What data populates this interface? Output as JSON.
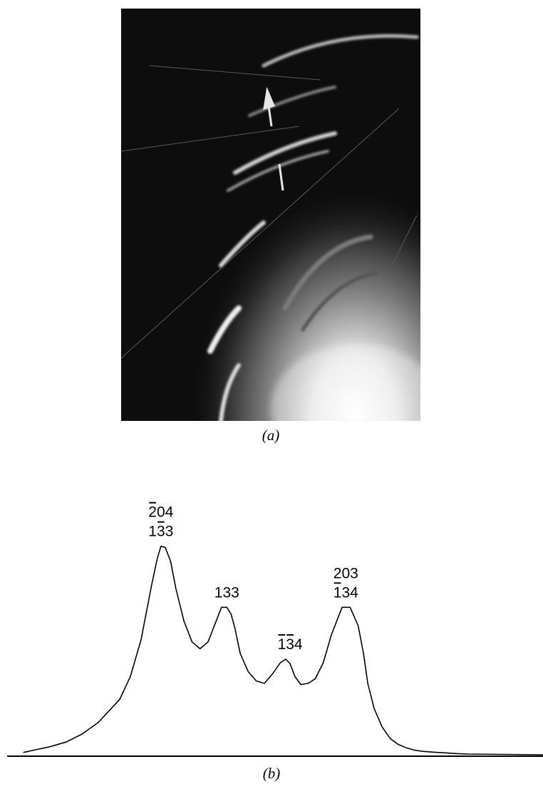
{
  "figure": {
    "panel_a": {
      "caption": "(a)"
    },
    "panel_b": {
      "caption": "(b)"
    }
  },
  "chart_data": {
    "type": "line",
    "title": "",
    "xlabel": "",
    "ylabel": "",
    "axes_shown": false,
    "grid": false,
    "baseline": true,
    "x_range": [
      0,
      100
    ],
    "y_range": [
      0,
      100
    ],
    "series": [
      {
        "x": [
          3,
          5,
          8,
          11,
          14,
          17,
          19,
          21,
          23,
          25,
          26,
          27,
          28,
          28.7,
          29.5,
          30.5,
          31.5,
          33,
          34.5,
          36,
          37.5,
          39,
          40,
          41,
          41.8,
          42.5,
          43.5,
          45,
          46.5,
          48,
          49.5,
          51,
          52,
          52.8,
          53.7,
          54.8,
          56.2,
          57.5,
          59,
          60.5,
          62.5,
          64,
          65.5,
          66.5,
          67.3,
          68.5,
          70,
          71.5,
          73,
          74.5,
          76,
          77.5,
          79,
          80.5,
          82,
          84,
          86,
          100
        ],
        "y": [
          1,
          2,
          3.5,
          5.5,
          9,
          14,
          19,
          24,
          34,
          50,
          62,
          74,
          85,
          90.5,
          90,
          84,
          72,
          58,
          49,
          46,
          49,
          58,
          64,
          64,
          61,
          55,
          44,
          36,
          32,
          31,
          35,
          40,
          41.5,
          39.5,
          34,
          30.5,
          31,
          33,
          40,
          52,
          64,
          64,
          56,
          44,
          31,
          20,
          12,
          7,
          4.5,
          3,
          2,
          1.5,
          1.2,
          1,
          0.8,
          0.5,
          0.3,
          0
        ]
      }
    ],
    "annotations": [
      {
        "x": 28.7,
        "y": 90.5,
        "lines": [
          "204",
          "133"
        ]
      },
      {
        "x": 41,
        "y": 64,
        "lines": [
          "133"
        ]
      },
      {
        "x": 52.8,
        "y": 41.5,
        "lines": [
          "134"
        ]
      },
      {
        "x": 63.2,
        "y": 64,
        "lines": [
          "203",
          "134"
        ]
      }
    ]
  }
}
